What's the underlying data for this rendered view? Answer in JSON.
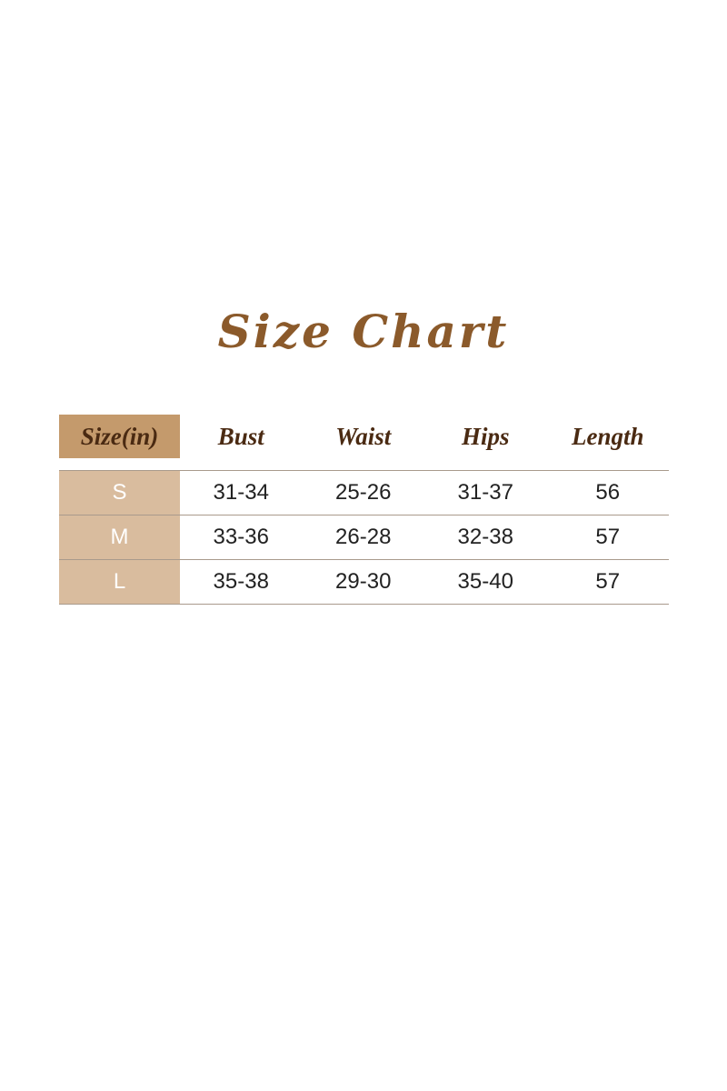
{
  "title": "Size Chart",
  "colors": {
    "title": "#8b5a2b",
    "header_cell": "#c49a6c",
    "size_column": "#d9bc9e",
    "header_text": "#4a2a12"
  },
  "table": {
    "headers": [
      "Size(in)",
      "Bust",
      "Waist",
      "Hips",
      "Length"
    ],
    "rows": [
      [
        "S",
        "31-34",
        "25-26",
        "31-37",
        "56"
      ],
      [
        "M",
        "33-36",
        "26-28",
        "32-38",
        "57"
      ],
      [
        "L",
        "35-38",
        "29-30",
        "35-40",
        "57"
      ]
    ]
  }
}
